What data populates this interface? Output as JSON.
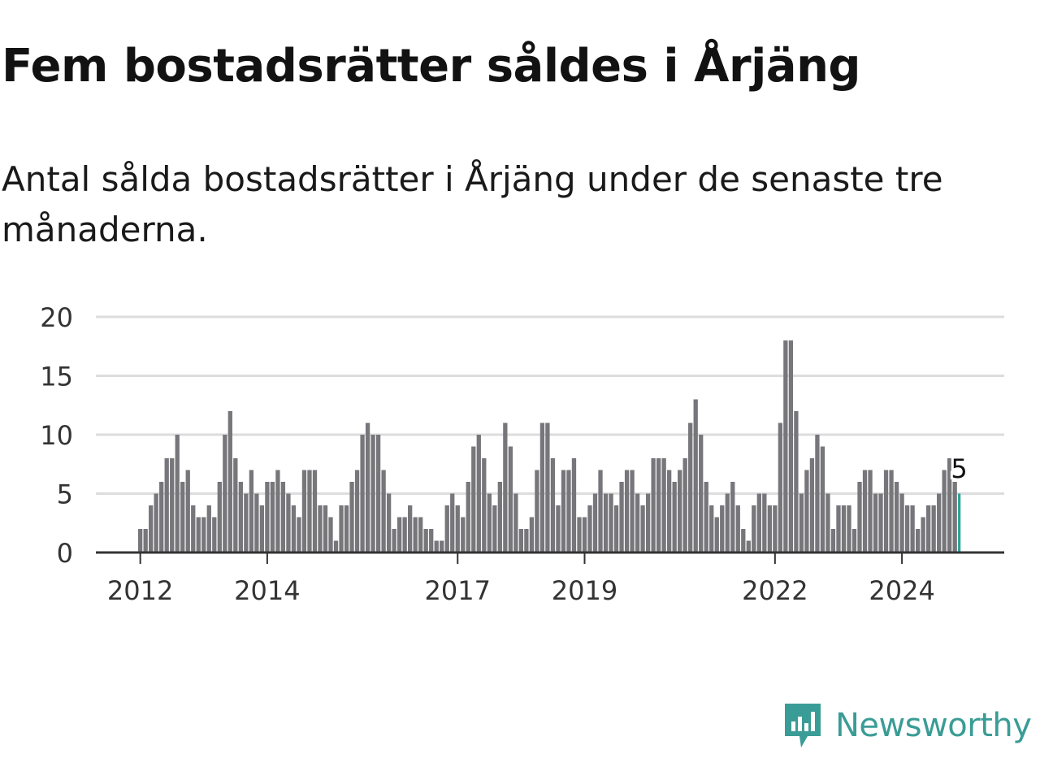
{
  "title": "Fem bostadsrätter såldes i Årjäng",
  "subtitle": "Antal sålda bostadsrätter i Årjäng under de senaste tre månaderna.",
  "brand": {
    "name": "Newsworthy",
    "icon": "newsworthy-logo-icon",
    "color": "#3a9c96"
  },
  "colors": {
    "bar": "#77767b",
    "highlight": "#2ba39a",
    "grid": "#dddddd",
    "axis": "#333333"
  },
  "chart_data": {
    "type": "bar",
    "start": "2012-01",
    "frequency": "monthly",
    "values": [
      2,
      2,
      4,
      5,
      6,
      8,
      8,
      10,
      6,
      7,
      4,
      3,
      3,
      4,
      3,
      6,
      10,
      12,
      8,
      6,
      5,
      7,
      5,
      4,
      6,
      6,
      7,
      6,
      5,
      4,
      3,
      7,
      7,
      7,
      4,
      4,
      3,
      1,
      4,
      4,
      6,
      7,
      10,
      11,
      10,
      10,
      7,
      5,
      2,
      3,
      3,
      4,
      3,
      3,
      2,
      2,
      1,
      1,
      4,
      5,
      4,
      3,
      6,
      9,
      10,
      8,
      5,
      4,
      6,
      11,
      9,
      5,
      2,
      2,
      3,
      7,
      11,
      11,
      8,
      4,
      7,
      7,
      8,
      3,
      3,
      4,
      5,
      7,
      5,
      5,
      4,
      6,
      7,
      7,
      5,
      4,
      5,
      8,
      8,
      8,
      7,
      6,
      7,
      8,
      11,
      13,
      10,
      6,
      4,
      3,
      4,
      5,
      6,
      4,
      2,
      1,
      4,
      5,
      5,
      4,
      4,
      11,
      18,
      18,
      12,
      5,
      7,
      8,
      10,
      9,
      5,
      2,
      4,
      4,
      4,
      2,
      6,
      7,
      7,
      5,
      5,
      7,
      7,
      6,
      5,
      4,
      4,
      2,
      3,
      4,
      4,
      5,
      7,
      8,
      6,
      5
    ],
    "highlight_last": true,
    "value_label": "5",
    "x_ticks": [
      "2012",
      "2014",
      "2017",
      "2019",
      "2022",
      "2024"
    ],
    "y_ticks": [
      "0",
      "5",
      "10",
      "15",
      "20"
    ],
    "ylim": [
      0,
      20
    ],
    "grid": true
  }
}
